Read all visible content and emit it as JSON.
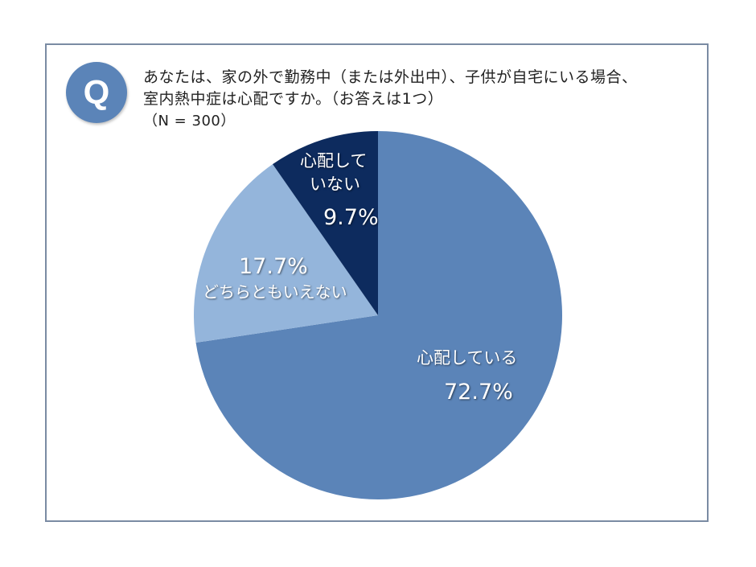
{
  "question": {
    "badge": "Q",
    "line1": "あなたは、家の外で勤務中（または外出中）、子供が自宅にいる場合、",
    "line2": "室内熱中症は心配ですか。（お答えは1つ）",
    "sample": "（N = 300）"
  },
  "labels": {
    "worried_name": "心配している",
    "worried_value": "72.7%",
    "neutral_value": "17.7%",
    "neutral_name": "どちらともいえない",
    "not_worried_name1": "心配して",
    "not_worried_name2": "いない",
    "not_worried_value": "9.7%"
  },
  "colors": {
    "worried": "#5b84b8",
    "neutral": "#94b5db",
    "not_worried": "#0d2b5e",
    "frame": "#7a8ba3"
  },
  "chart_data": {
    "type": "pie",
    "title": "あなたは、家の外で勤務中（または外出中）、子供が自宅にいる場合、室内熱中症は心配ですか。（お答えは1つ）",
    "subtitle": "（N = 300）",
    "categories": [
      "心配している",
      "どちらともいえない",
      "心配していない"
    ],
    "values": [
      72.7,
      17.7,
      9.7
    ],
    "unit": "%",
    "start_angle": "12 o'clock, clockwise",
    "legend": "none (labels inside slices)"
  }
}
